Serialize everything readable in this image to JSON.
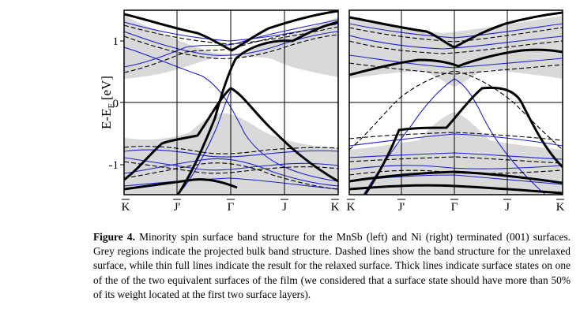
{
  "figure": {
    "ylabel_main": "E-E",
    "ylabel_sub": "F",
    "ylabel_unit": " [eV]",
    "yticks": [
      "1",
      "0",
      "-1"
    ],
    "panels": [
      {
        "name": "left",
        "xlabels": [
          "K",
          "J'",
          "Γ",
          "J",
          "K"
        ]
      },
      {
        "name": "right",
        "xlabels": [
          "K",
          "J'",
          "Γ",
          "J",
          "K"
        ]
      }
    ]
  },
  "caption": {
    "label": "Figure 4.",
    "text": " Minority spin surface band structure for the MnSb (left) and Ni (right) terminated (001) surfaces. Grey regions indicate the projected bulk band structure. Dashed lines show the band structure for the unrelaxed surface, while thin full lines indicate the result for the relaxed surface. Thick lines indicate surface states on one of the of the two equivalent surfaces of the film (we considered that a surface state should have more than 50% of its weight located at the first two surface layers)."
  },
  "colors": {
    "bulk_grey": "#d9d9d9",
    "relaxed_blue": "#1f1fd0",
    "axis": "#000000"
  }
}
